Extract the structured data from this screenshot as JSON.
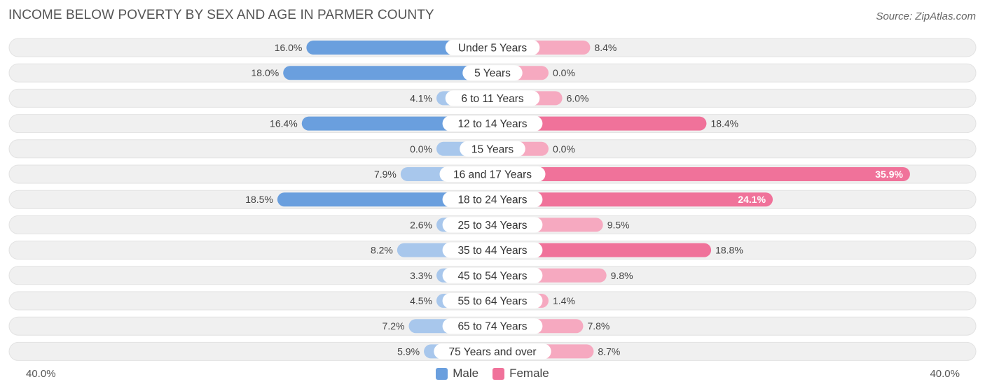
{
  "header": {
    "title": "INCOME BELOW POVERTY BY SEX AND AGE IN PARMER COUNTY",
    "source": "Source: ZipAtlas.com"
  },
  "axis": {
    "left_label": "40.0%",
    "right_label": "40.0%"
  },
  "legend": {
    "male": "Male",
    "female": "Female"
  },
  "colors": {
    "male_strong": "#6a9fde",
    "male_light": "#a8c7ec",
    "female_strong": "#f0729a",
    "female_light": "#f6a9c0",
    "track": "#f0f0f0"
  },
  "chart_data": {
    "type": "bar",
    "title": "INCOME BELOW POVERTY BY SEX AND AGE IN PARMER COUNTY",
    "orientation": "horizontal-diverging",
    "categories": [
      "Under 5 Years",
      "5 Years",
      "6 to 11 Years",
      "12 to 14 Years",
      "15 Years",
      "16 and 17 Years",
      "18 to 24 Years",
      "25 to 34 Years",
      "35 to 44 Years",
      "45 to 54 Years",
      "55 to 64 Years",
      "65 to 74 Years",
      "75 Years and over"
    ],
    "series": [
      {
        "name": "Male",
        "values": [
          16.0,
          18.0,
          4.1,
          16.4,
          0.0,
          7.9,
          18.5,
          2.6,
          8.2,
          3.3,
          4.5,
          7.2,
          5.9
        ],
        "labels": [
          "16.0%",
          "18.0%",
          "4.1%",
          "16.4%",
          "0.0%",
          "7.9%",
          "18.5%",
          "2.6%",
          "8.2%",
          "3.3%",
          "4.5%",
          "7.2%",
          "5.9%"
        ]
      },
      {
        "name": "Female",
        "values": [
          8.4,
          0.0,
          6.0,
          18.4,
          0.0,
          35.9,
          24.1,
          9.5,
          18.8,
          9.8,
          1.4,
          7.8,
          8.7
        ],
        "labels": [
          "8.4%",
          "0.0%",
          "6.0%",
          "18.4%",
          "0.0%",
          "35.9%",
          "24.1%",
          "9.5%",
          "18.8%",
          "9.8%",
          "1.4%",
          "7.8%",
          "8.7%"
        ]
      }
    ],
    "xlim": [
      -40,
      40
    ],
    "xlabel_left": "40.0%",
    "xlabel_right": "40.0%",
    "legend_position": "bottom-center"
  }
}
